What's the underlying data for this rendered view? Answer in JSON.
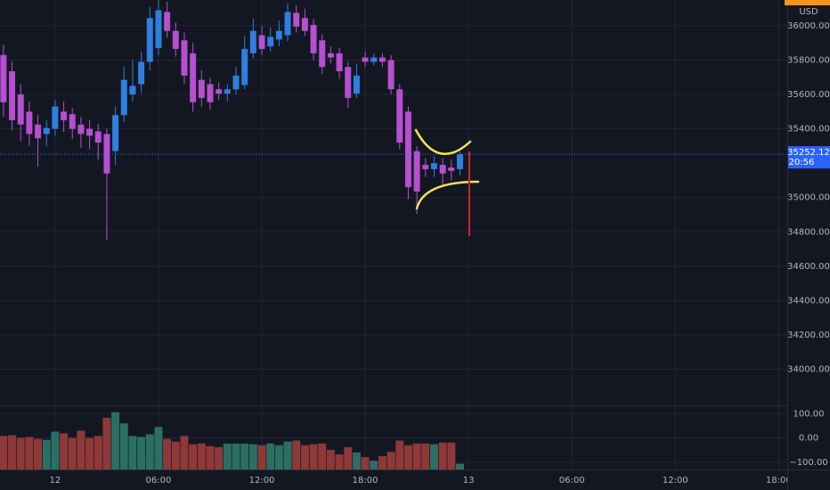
{
  "chart_data": {
    "type": "candlestick",
    "currency": "USD",
    "countdown": "20:56",
    "up_color": "#2f7fe0",
    "down_color": "#b64fd0",
    "x": [
      -3,
      -2.5,
      -2,
      -1.5,
      -1,
      -0.5,
      0,
      0.5,
      1,
      1.5,
      2,
      2.5,
      3,
      3.5,
      4,
      4.5,
      5,
      5.5,
      6,
      6.5,
      7,
      7.5,
      8,
      8.5,
      9,
      9.5,
      10,
      10.5,
      11,
      11.5,
      12,
      12.5,
      13,
      13.5,
      14,
      14.5,
      15,
      15.5,
      16,
      16.5,
      17,
      17.5,
      18,
      18.5,
      19,
      19.5,
      20,
      20.5,
      21,
      21.5,
      22,
      22.5,
      23,
      23.5
    ],
    "open": [
      35830,
      35735,
      35600,
      35500,
      35425,
      35370,
      35400,
      35500,
      35485,
      35425,
      35400,
      35385,
      35370,
      35270,
      35480,
      35600,
      35660,
      35790,
      35870,
      36080,
      35970,
      35915,
      35840,
      35685,
      35660,
      35630,
      35605,
      35630,
      35655,
      35840,
      35945,
      35880,
      35920,
      35945,
      36075,
      36045,
      36005,
      35915,
      35840,
      35840,
      35760,
      35605,
      35815,
      35790,
      35815,
      35800,
      35630,
      35500,
      35270,
      35190,
      35165,
      35190,
      35175,
      35165
    ],
    "high": [
      35890,
      35790,
      35660,
      35560,
      35480,
      35450,
      35570,
      35560,
      35520,
      35470,
      35450,
      35430,
      35400,
      35530,
      35760,
      35800,
      35850,
      36110,
      36150,
      36140,
      36020,
      35960,
      35900,
      35740,
      35700,
      35670,
      35660,
      35760,
      35940,
      36040,
      36000,
      35990,
      36030,
      36130,
      36120,
      36100,
      36040,
      35950,
      35880,
      35870,
      35790,
      35780,
      35850,
      35840,
      35840,
      35830,
      35660,
      35530,
      35300,
      35230,
      35240,
      35230,
      35220,
      35270
    ],
    "low": [
      35470,
      35390,
      35330,
      35300,
      35180,
      35300,
      35360,
      35380,
      35340,
      35290,
      35280,
      35220,
      34750,
      35190,
      35440,
      35560,
      35610,
      35740,
      35830,
      35930,
      35820,
      35660,
      35500,
      35530,
      35510,
      35570,
      35560,
      35600,
      35630,
      35810,
      35830,
      35850,
      35880,
      35910,
      35960,
      35940,
      35800,
      35720,
      35780,
      35690,
      35520,
      35580,
      35760,
      35770,
      35760,
      35600,
      35280,
      34990,
      34905,
      35120,
      35120,
      35060,
      35100,
      35130
    ],
    "close": [
      35555,
      35450,
      35425,
      35370,
      35345,
      35405,
      35530,
      35450,
      35400,
      35370,
      35360,
      35320,
      35140,
      35480,
      35685,
      35650,
      35790,
      36045,
      36090,
      35970,
      35865,
      35710,
      35555,
      35580,
      35555,
      35605,
      35630,
      35710,
      35865,
      35970,
      35865,
      35935,
      35970,
      36080,
      35995,
      35970,
      35840,
      35760,
      35815,
      35735,
      35580,
      35710,
      35790,
      35815,
      35790,
      35630,
      35320,
      35060,
      35035,
      35165,
      35200,
      35140,
      35155,
      35252.12
    ],
    "xlim": [
      -3.2,
      42.5
    ],
    "xticks": [
      {
        "value": 0,
        "label": "12"
      },
      {
        "value": 6,
        "label": "06:00"
      },
      {
        "value": 12,
        "label": "12:00"
      },
      {
        "value": 18,
        "label": "18:00"
      },
      {
        "value": 24,
        "label": "13"
      },
      {
        "value": 30,
        "label": "06:00"
      },
      {
        "value": 36,
        "label": "12:00"
      },
      {
        "value": 42,
        "label": "18:00"
      }
    ],
    "ylim": [
      33790,
      36150
    ],
    "yticks": [
      {
        "value": 36000,
        "label": "36000.00"
      },
      {
        "value": 35800,
        "label": "35800.00"
      },
      {
        "value": 35600,
        "label": "35600.00"
      },
      {
        "value": 35400,
        "label": "35400.00"
      },
      {
        "value": 35000,
        "label": "35000.00"
      },
      {
        "value": 34800,
        "label": "34800.00"
      },
      {
        "value": 34600,
        "label": "34600.00"
      },
      {
        "value": 34400,
        "label": "34400.00"
      },
      {
        "value": 34200,
        "label": "34200.00"
      },
      {
        "value": 34000,
        "label": "34000.00"
      }
    ],
    "grid": true,
    "volume": {
      "up_color": "#2b6e64",
      "down_color": "#8f3838",
      "values": [
        8,
        11,
        0,
        4,
        -4,
        -8,
        26,
        19,
        0,
        30,
        0,
        8,
        83,
        106,
        60,
        8,
        4,
        15,
        45,
        -4,
        -15,
        8,
        -26,
        -23,
        -34,
        -38,
        -23,
        -23,
        -23,
        -26,
        -30,
        -23,
        -30,
        -15,
        -11,
        -30,
        -26,
        -23,
        -49,
        -68,
        -38,
        -60,
        -79,
        -94,
        -75,
        -57,
        -11,
        -30,
        -23,
        -23,
        -26,
        -19,
        -19,
        -106
      ],
      "ylim": [
        -130,
        134
      ],
      "yticks": [
        {
          "value": 100,
          "label": "100.00"
        },
        {
          "value": 0,
          "label": "0.00"
        },
        {
          "value": -100,
          "label": "−100.00"
        }
      ]
    }
  }
}
